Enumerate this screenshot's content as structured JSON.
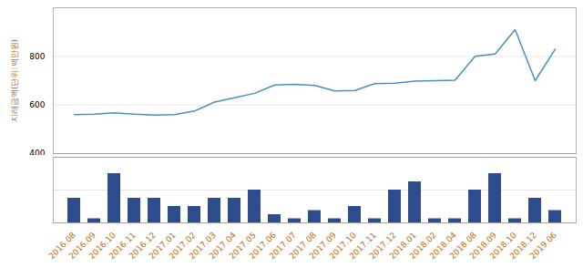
{
  "chart_data": [
    {
      "type": "line",
      "ylabel": "지래금액(단위:백만원)",
      "categories": [
        "2016.08",
        "2016.09",
        "2016.10",
        "2016.11",
        "2016.12",
        "2017.01",
        "2017.02",
        "2017.03",
        "2017.04",
        "2017.05",
        "2017.06",
        "2017.07",
        "2017.08",
        "2017.09",
        "2017.10",
        "2017.11",
        "2017.12",
        "2018.01",
        "2018.02",
        "2018.04",
        "2018.08",
        "2018.09",
        "2018.10",
        "2018.12",
        "2019.06"
      ],
      "values": [
        560,
        562,
        568,
        562,
        558,
        560,
        575,
        612,
        630,
        648,
        682,
        685,
        680,
        658,
        660,
        688,
        690,
        698,
        700,
        702,
        800,
        810,
        910,
        700,
        830
      ],
      "color": "#4a8fc0",
      "ylim": [
        400,
        1000
      ],
      "yticks": [
        400,
        600,
        800
      ],
      "grid": true,
      "tick_labels": "y"
    },
    {
      "type": "bar",
      "categories": [
        "2016.08",
        "2016.09",
        "2016.10",
        "2016.11",
        "2016.12",
        "2017.01",
        "2017.02",
        "2017.03",
        "2017.04",
        "2017.05",
        "2017.06",
        "2017.07",
        "2017.08",
        "2017.09",
        "2017.10",
        "2017.11",
        "2017.12",
        "2018.01",
        "2018.02",
        "2018.04",
        "2018.08",
        "2018.09",
        "2018.10",
        "2018.12",
        "2019.06"
      ],
      "values": [
        3,
        0.5,
        6,
        3,
        3,
        2,
        2,
        3,
        3,
        4,
        1,
        0.5,
        1.5,
        0.5,
        2,
        0.5,
        4,
        5,
        0.5,
        0.5,
        4,
        6,
        0.5,
        3,
        1.5
      ],
      "color": "#2e4d8e",
      "ylim": [
        0,
        8
      ],
      "yticks": [
        0,
        4,
        8
      ],
      "grid": true,
      "tick_labels": "x"
    }
  ]
}
